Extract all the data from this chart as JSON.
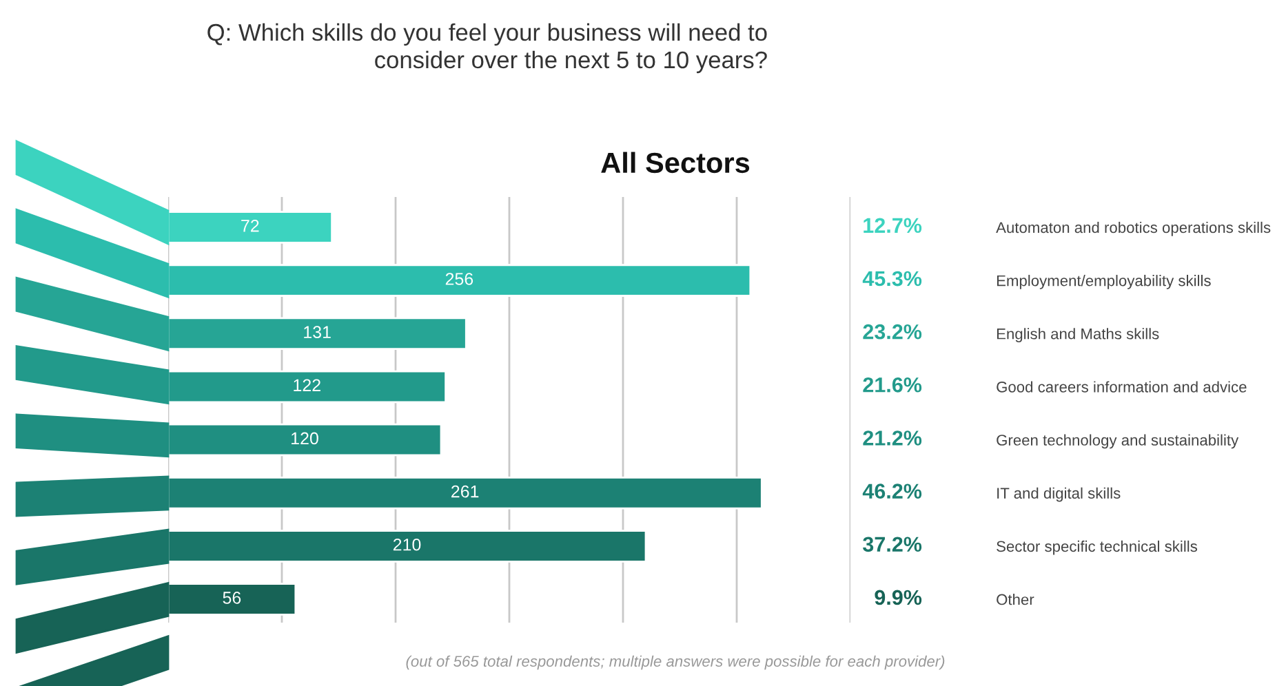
{
  "chart_data": {
    "type": "bar",
    "orientation": "horizontal",
    "title": "Q: Which skills do you feel your business will need to\nconsider over the next 5 to 10 years?",
    "subtitle": "All Sectors",
    "categories": [
      "Automaton and robotics operations skills",
      "Employment/employability skills",
      "English and Maths skills",
      "Good careers information and advice",
      "Green technology and sustainability",
      "IT and digital skills",
      "Sector specific technical skills",
      "Other"
    ],
    "values": [
      72,
      256,
      131,
      122,
      120,
      261,
      210,
      56
    ],
    "colors": [
      "#3cd3bf",
      "#2cbdad",
      "#26a595",
      "#229a8b",
      "#1f8f81",
      "#1c8174",
      "#1a7669",
      "#176356"
    ],
    "data_labels": true,
    "xlim": [
      0,
      300
    ],
    "xticks": [
      {
        "value": 0,
        "label": null
      },
      {
        "value": 50,
        "label": null
      },
      {
        "value": 100,
        "label": null
      },
      {
        "value": 150,
        "label": null
      },
      {
        "value": 200,
        "label": null
      },
      {
        "value": 250,
        "label": null
      },
      {
        "value": 300,
        "label": null
      }
    ],
    "grid": "x",
    "tick_labels": "y",
    "legend": false,
    "annotations": [
      "12.7%",
      "45.3%",
      "23.2%",
      "21.6%",
      "21.2%",
      "46.2%",
      "37.2%",
      "9.9%",
      "(out of 565 total respondents; multiple answers were possible for each provider)"
    ]
  }
}
